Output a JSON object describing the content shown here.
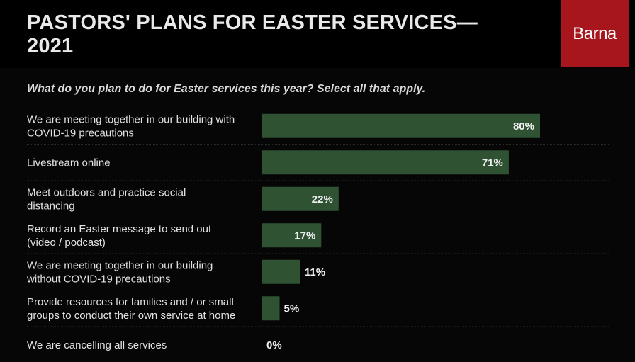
{
  "header": {
    "title_line1": "PASTORS' PLANS FOR EASTER SERVICES—",
    "title_line2": "2021",
    "logo_text": "Barna"
  },
  "question": "What do you plan to do for Easter services this year? Select all that apply.",
  "colors": {
    "bar": "#2f5233",
    "logo_bg": "#a8161d",
    "background": "#060606"
  },
  "chart_data": {
    "type": "bar",
    "orientation": "horizontal",
    "title": "PASTORS' PLANS FOR EASTER SERVICES—2021",
    "subtitle": "What do you plan to do for Easter services this year? Select all that apply.",
    "xlim": [
      0,
      100
    ],
    "grid": false,
    "categories": [
      [
        "We are meeting together in our building with",
        "COVID-19 precautions"
      ],
      [
        "Livestream online"
      ],
      [
        "Meet outdoors and practice social",
        "distancing"
      ],
      [
        "Record an Easter message to send out",
        "(video / podcast)"
      ],
      [
        "We are meeting together in our building",
        "without COVID-19 precautions"
      ],
      [
        "Provide resources for families and / or small",
        "groups to conduct their own service at home"
      ],
      [
        "We are cancelling all services"
      ]
    ],
    "values": [
      80,
      71,
      22,
      17,
      11,
      5,
      0
    ],
    "value_labels": [
      "80%",
      "71%",
      "22%",
      "17%",
      "11%",
      "5%",
      "0%"
    ]
  }
}
